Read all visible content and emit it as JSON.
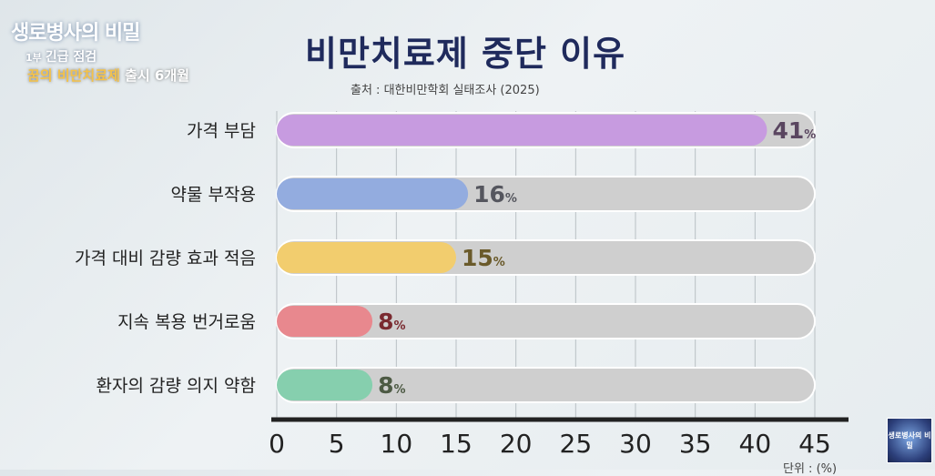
{
  "broadcast": {
    "show_logo": "생로병사의 비밀",
    "episode": "1부",
    "segment": "긴급 점검",
    "subtitle_highlight": "꿈의 비만치료제",
    "subtitle_rest": "출시 6개월",
    "corner_logo": "생로병사의 비밀"
  },
  "chart_data": {
    "type": "bar",
    "orientation": "horizontal",
    "title": "비만치료제 중단 이유",
    "source": "출처 : 대한비만학회 실태조사 (2025)",
    "unit_label": "단위 : (%)",
    "categories": [
      "가격 부담",
      "약물 부작용",
      "가격 대비 감량 효과 적음",
      "지속 복용 번거로움",
      "환자의 감량 의지 약함"
    ],
    "values": [
      41,
      16,
      15,
      8,
      8
    ],
    "value_suffix": "%",
    "bar_colors": [
      "#c79be0",
      "#93acdf",
      "#f2cd6e",
      "#e8888e",
      "#86cfae"
    ],
    "label_colors": [
      "#5a4660",
      "#55565e",
      "#6a5a2a",
      "#7a2a30",
      "#4d5a44"
    ],
    "track_color": "#cfcfcf",
    "xlim": [
      0,
      45
    ],
    "x_ticks": [
      "0",
      "5",
      "10",
      "15",
      "20",
      "25",
      "30",
      "35",
      "40",
      "45"
    ],
    "grid": true
  }
}
